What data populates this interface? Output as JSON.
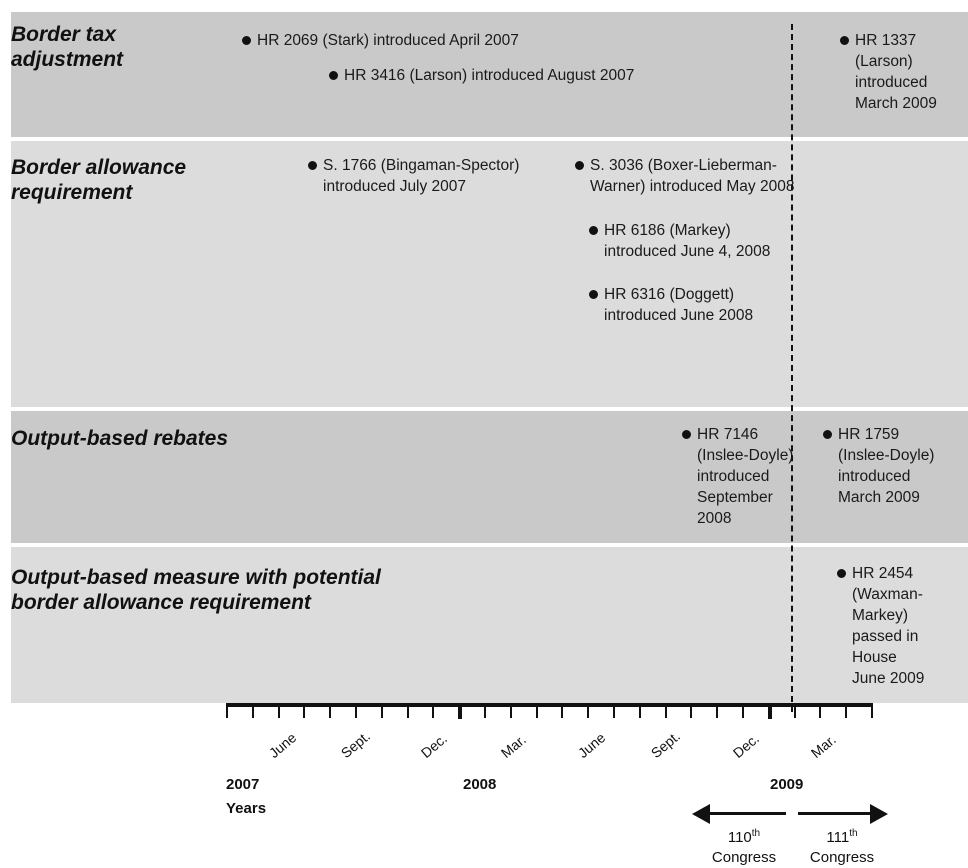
{
  "bands": [
    {
      "title": "Border tax\nadjustment"
    },
    {
      "title": "Border allowance\nrequirement"
    },
    {
      "title": "Output-based rebates"
    },
    {
      "title": "Output-based measure with potential\nborder allowance requirement"
    }
  ],
  "events": [
    {
      "text": "HR 2069 (Stark) introduced April 2007"
    },
    {
      "text": "HR 3416 (Larson) introduced August 2007"
    },
    {
      "text": "HR 1337\n(Larson)\nintroduced\nMarch 2009"
    },
    {
      "text": "S. 1766 (Bingaman-Spector)\nintroduced July 2007"
    },
    {
      "text": "S. 3036 (Boxer-Lieberman-\nWarner) introduced May 2008"
    },
    {
      "text": "HR 6186 (Markey)\nintroduced June 4, 2008"
    },
    {
      "text": "HR 6316 (Doggett)\nintroduced June 2008"
    },
    {
      "text": "HR 7146\n(Inslee-Doyle)\nintroduced\nSeptember\n2008"
    },
    {
      "text": "HR 1759\n(Inslee-Doyle)\nintroduced\nMarch 2009"
    },
    {
      "text": "HR 2454\n(Waxman-\nMarkey)\npassed in\nHouse\nJune 2009"
    }
  ],
  "axis": {
    "months": [
      "June",
      "Sept.",
      "Dec.",
      "Mar.",
      "June",
      "Sept.",
      "Dec.",
      "Mar."
    ],
    "years": [
      "2007",
      "2008",
      "2009"
    ],
    "years_label": "Years"
  },
  "congress": {
    "left": {
      "number": "110",
      "suffix": "th",
      "word": "Congress"
    },
    "right": {
      "number": "111",
      "suffix": "th",
      "word": "Congress"
    }
  }
}
